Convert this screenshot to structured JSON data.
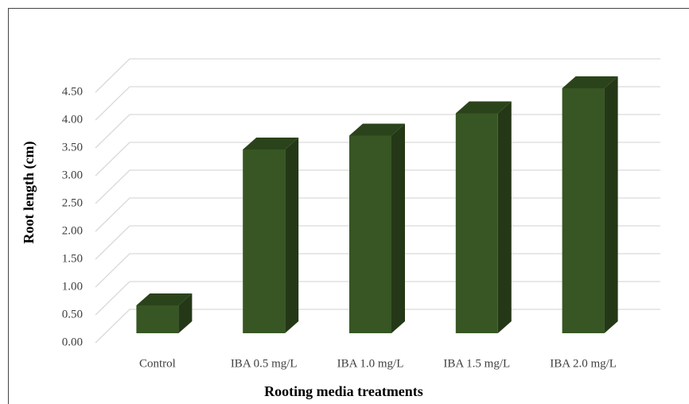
{
  "chart_data": {
    "type": "bar3d",
    "x_label": "Rooting media treatments",
    "y_label": "Root length (cm)",
    "categories": [
      "Control",
      "IBA 0.5 mg/L",
      "IBA 1.0 mg/L",
      "IBA 1.5 mg/L",
      "IBA 2.0 mg/L"
    ],
    "values": [
      0.5,
      3.3,
      3.55,
      3.95,
      4.4
    ],
    "color": "#375623",
    "ylim": [
      0,
      4.5
    ],
    "yticks": [
      {
        "value": 0,
        "label": "0.00"
      },
      {
        "value": 0.5,
        "label": "0.50"
      },
      {
        "value": 1,
        "label": "1.00"
      },
      {
        "value": 1.5,
        "label": "1.50"
      },
      {
        "value": 2,
        "label": "2.00"
      },
      {
        "value": 2.5,
        "label": "2.50"
      },
      {
        "value": 3,
        "label": "3.00"
      },
      {
        "value": 3.5,
        "label": "3.50"
      },
      {
        "value": 4,
        "label": "4.00"
      },
      {
        "value": 4.5,
        "label": "4.50"
      }
    ],
    "grid": true
  }
}
